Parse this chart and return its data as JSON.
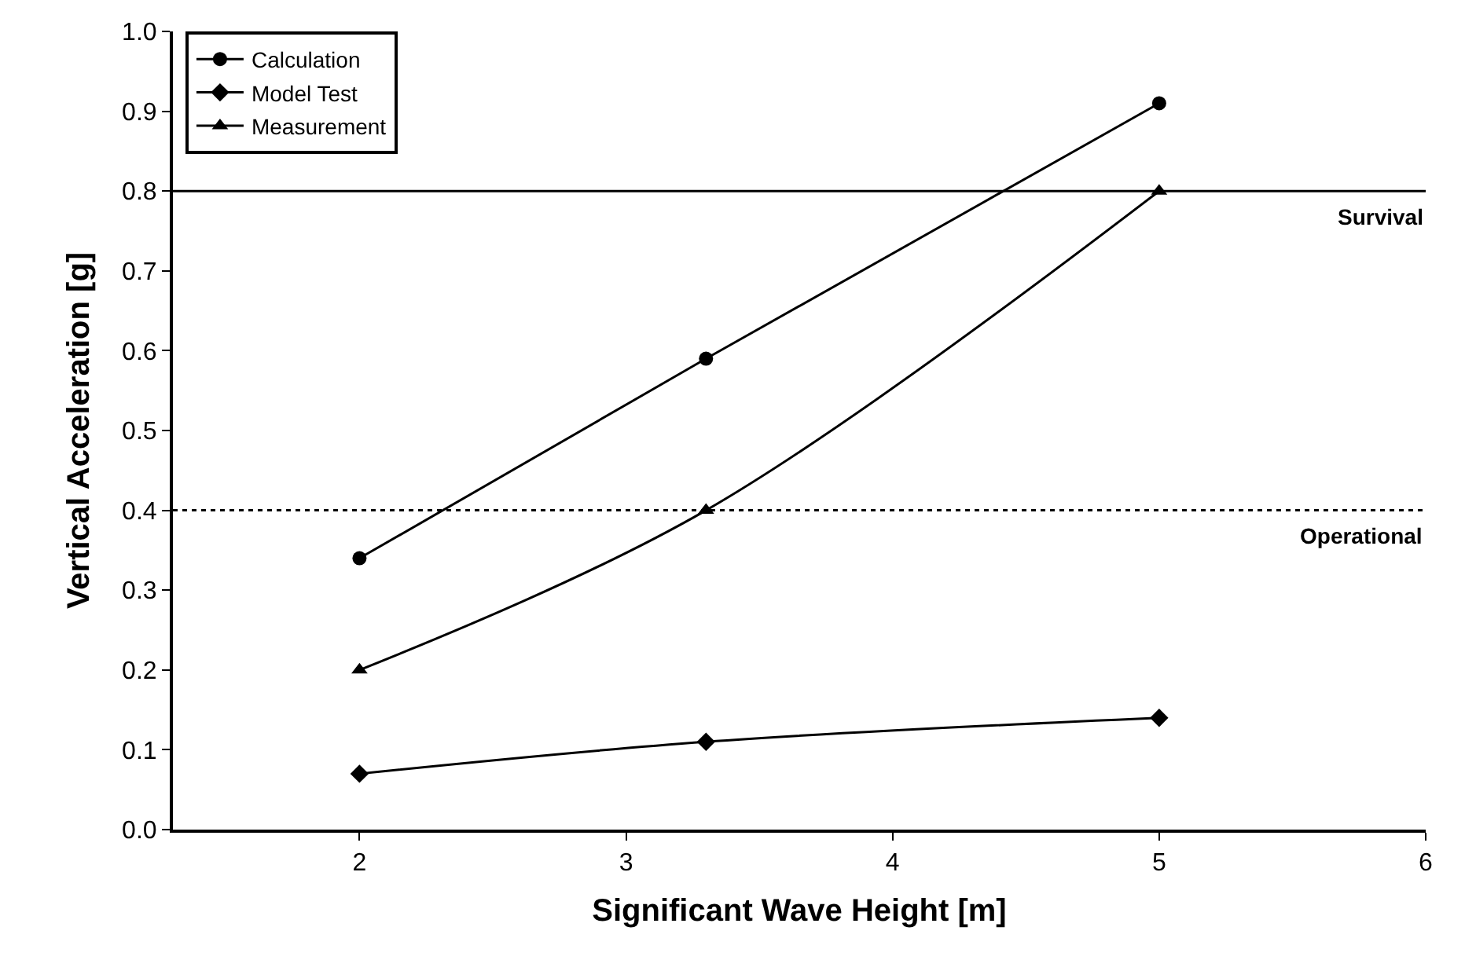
{
  "chart_data": {
    "type": "line",
    "xlabel": "Significant Wave Height [m]",
    "ylabel": "Vertical Acceleration [g]",
    "x": [
      2.0,
      3.3,
      5.0
    ],
    "series": [
      {
        "name": "Calculation",
        "color": "#000000",
        "marker": "circle",
        "values": [
          0.34,
          0.59,
          0.91
        ]
      },
      {
        "name": "Model Test",
        "color": "#000000",
        "marker": "diamond",
        "values": [
          0.07,
          0.11,
          0.14
        ]
      },
      {
        "name": "Measurement",
        "color": "#000000",
        "marker": "triangle",
        "values": [
          0.2,
          0.4,
          0.8
        ]
      }
    ],
    "xlim": [
      1.3,
      6
    ],
    "xticks": [
      2,
      3,
      4,
      5,
      6
    ],
    "ylim": [
      0,
      1
    ],
    "yticks": [
      {
        "value": 0,
        "label": "0.0"
      },
      0.1,
      0.2,
      0.3,
      0.4,
      0.5,
      0.6,
      0.7,
      0.8,
      0.9,
      {
        "value": 1,
        "label": "1.0"
      }
    ],
    "ref_lines": [
      {
        "axis": "y",
        "value": 0.8,
        "label": "Survival",
        "color": "#000000",
        "line_style": "solid"
      },
      {
        "axis": "y",
        "value": 0.4,
        "label": "Operational",
        "color": "#000000",
        "line_style": "dotted"
      }
    ],
    "legend": "top left",
    "line_style": "solid"
  }
}
